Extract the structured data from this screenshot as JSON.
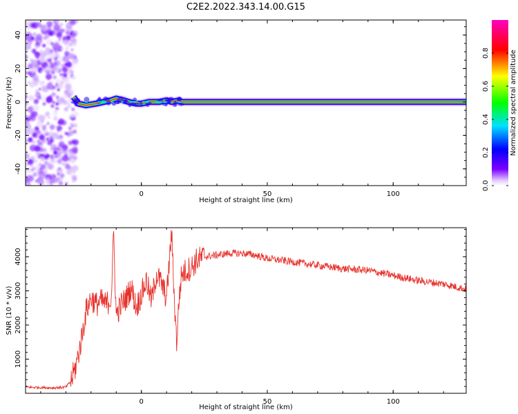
{
  "title": "C2E2.2022.343.14.00.G15",
  "chart_data": [
    {
      "type": "heatmap",
      "xlabel": "Height of straight line (km)",
      "ylabel": "Frequency (Hz)",
      "xlim": [
        -46,
        129
      ],
      "ylim": [
        -50,
        49
      ],
      "xticks": [
        0,
        50,
        100
      ],
      "yticks": [
        -40,
        -20,
        0,
        20,
        40
      ],
      "colorbar": {
        "label": "Normalized spectral amplitude",
        "range": [
          0,
          1
        ],
        "ticks": [
          "0.0",
          "0.2",
          "0.4",
          "0.6",
          "0.8"
        ],
        "colormap": "rainbow (purple → blue → cyan → green → yellow → red → magenta)"
      },
      "noise_region_x": [
        -46,
        -27
      ],
      "signal_track": [
        {
          "x": -27,
          "y": 3
        },
        {
          "x": -25,
          "y": -1
        },
        {
          "x": -22,
          "y": -2
        },
        {
          "x": -18,
          "y": -1
        },
        {
          "x": -15,
          "y": 0
        },
        {
          "x": -12,
          "y": 1
        },
        {
          "x": -10,
          "y": 2
        },
        {
          "x": -7,
          "y": 1
        },
        {
          "x": -5,
          "y": 0
        },
        {
          "x": -2,
          "y": -1
        },
        {
          "x": 0,
          "y": -1
        },
        {
          "x": 3,
          "y": 0
        },
        {
          "x": 7,
          "y": 0
        },
        {
          "x": 10,
          "y": 1
        },
        {
          "x": 12,
          "y": 0
        },
        {
          "x": 15,
          "y": 1
        },
        {
          "x": 16,
          "y": 0
        },
        {
          "x": 129,
          "y": 0
        }
      ]
    },
    {
      "type": "line",
      "xlabel": "Height of straight line (km)",
      "ylabel": "SNR (10 * v/v)",
      "xlim": [
        -46,
        129
      ],
      "ylim": [
        0,
        4850
      ],
      "xticks": [
        0,
        50,
        100
      ],
      "yticks": [
        1000,
        2000,
        3000,
        4000
      ],
      "color": "#e8302a",
      "series": [
        {
          "x": [
            -46,
            -40,
            -35,
            -30,
            -28,
            -26,
            -24,
            -22,
            -20,
            -18,
            -16,
            -14,
            -12,
            -11,
            -10,
            -8,
            -6,
            -4,
            -2,
            0,
            2,
            4,
            6,
            8,
            10,
            12,
            13,
            14,
            15,
            16,
            18,
            20,
            22,
            25,
            30,
            35,
            40,
            45,
            50,
            55,
            60,
            70,
            80,
            90,
            100,
            110,
            120,
            129
          ],
          "y": [
            180,
            170,
            160,
            180,
            350,
            800,
            1500,
            2400,
            2800,
            2600,
            2700,
            2600,
            2800,
            4650,
            2300,
            2600,
            2800,
            3100,
            2500,
            2900,
            3300,
            2700,
            3500,
            3200,
            2800,
            4700,
            2900,
            1500,
            2800,
            3500,
            3600,
            3700,
            3900,
            4000,
            4050,
            4100,
            4100,
            4050,
            3950,
            3900,
            3850,
            3750,
            3650,
            3600,
            3450,
            3300,
            3200,
            3050
          ]
        }
      ]
    }
  ]
}
